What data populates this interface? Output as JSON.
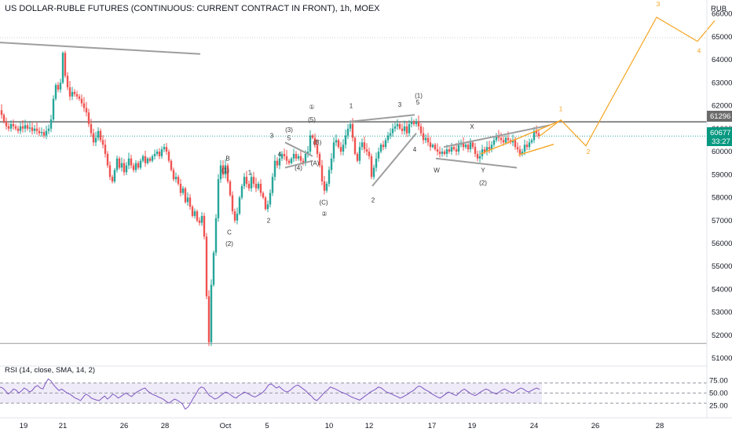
{
  "chart_data": {
    "type": "candlestick",
    "title": "US DOLLAR-RUBLE FUTURES (CONTINUOUS: CURRENT CONTRACT IN FRONT), 1h, MOEX",
    "currency": "RUB",
    "y_ticks": [
      "66000",
      "65000",
      "64000",
      "63000",
      "62000",
      "61000",
      "60000",
      "59000",
      "58000",
      "57000",
      "56000",
      "55000",
      "54000",
      "53000",
      "52000",
      "51000"
    ],
    "ylim": [
      50700,
      66600
    ],
    "x_ticks": [
      "19",
      "21",
      "26",
      "28",
      "Oct",
      "5",
      "10",
      "12",
      "17",
      "19",
      "24",
      "26",
      "28"
    ],
    "price_badges": {
      "level": "61296",
      "last": "60677",
      "countdown": "33:27"
    },
    "horizontal_levels": [
      61296,
      51650
    ],
    "colors": {
      "up": "#26a69a",
      "down": "#ef5350",
      "projection": "#f5a623",
      "lines": "#9e9e9e",
      "rsi": "#7e57c2"
    },
    "price_path": [
      [
        0,
        61800
      ],
      [
        3,
        61600
      ],
      [
        6,
        61300
      ],
      [
        9,
        61100
      ],
      [
        12,
        61000
      ],
      [
        15,
        61200
      ],
      [
        18,
        61100
      ],
      [
        21,
        61000
      ],
      [
        24,
        60900
      ],
      [
        27,
        61100
      ],
      [
        30,
        61000
      ],
      [
        33,
        61150
      ],
      [
        36,
        61000
      ],
      [
        39,
        61050
      ],
      [
        42,
        60900
      ],
      [
        45,
        61000
      ],
      [
        48,
        60900
      ],
      [
        51,
        60800
      ],
      [
        54,
        60850
      ],
      [
        57,
        60700
      ],
      [
        60,
        60900
      ],
      [
        63,
        61000
      ],
      [
        66,
        61400
      ],
      [
        69,
        62300
      ],
      [
        72,
        62900
      ],
      [
        75,
        62700
      ],
      [
        78,
        63000
      ],
      [
        81,
        64300
      ],
      [
        84,
        63300
      ],
      [
        87,
        62800
      ],
      [
        90,
        62400
      ],
      [
        93,
        62600
      ],
      [
        96,
        62500
      ],
      [
        99,
        62400
      ],
      [
        102,
        62300
      ],
      [
        105,
        62100
      ],
      [
        108,
        61900
      ],
      [
        111,
        61700
      ],
      [
        114,
        61200
      ],
      [
        117,
        60800
      ],
      [
        120,
        60400
      ],
      [
        123,
        60600
      ],
      [
        126,
        60900
      ],
      [
        129,
        60500
      ],
      [
        132,
        60300
      ],
      [
        135,
        59900
      ],
      [
        138,
        59400
      ],
      [
        141,
        58900
      ],
      [
        144,
        58700
      ],
      [
        147,
        59200
      ],
      [
        150,
        59700
      ],
      [
        153,
        59300
      ],
      [
        156,
        59500
      ],
      [
        159,
        59100
      ],
      [
        162,
        59400
      ],
      [
        165,
        59700
      ],
      [
        168,
        59400
      ],
      [
        171,
        59200
      ],
      [
        174,
        59500
      ],
      [
        177,
        59300
      ],
      [
        180,
        59600
      ],
      [
        183,
        59800
      ],
      [
        186,
        59500
      ],
      [
        189,
        59700
      ],
      [
        192,
        59600
      ],
      [
        195,
        59800
      ],
      [
        198,
        59900
      ],
      [
        201,
        60000
      ],
      [
        204,
        59800
      ],
      [
        207,
        60100
      ],
      [
        210,
        60200
      ],
      [
        213,
        60000
      ],
      [
        216,
        59600
      ],
      [
        219,
        59200
      ],
      [
        222,
        58800
      ],
      [
        225,
        58900
      ],
      [
        228,
        58600
      ],
      [
        231,
        58200
      ],
      [
        234,
        58400
      ],
      [
        237,
        57800
      ],
      [
        240,
        58000
      ],
      [
        243,
        57600
      ],
      [
        246,
        57200
      ],
      [
        249,
        57400
      ],
      [
        252,
        57000
      ],
      [
        255,
        56900
      ],
      [
        258,
        57200
      ],
      [
        261,
        56300
      ],
      [
        264,
        53700
      ],
      [
        267,
        51700
      ],
      [
        270,
        54200
      ],
      [
        273,
        55600
      ],
      [
        276,
        57100
      ],
      [
        279,
        58800
      ],
      [
        282,
        59400
      ],
      [
        285,
        59000
      ],
      [
        288,
        59400
      ],
      [
        291,
        58700
      ],
      [
        294,
        58100
      ],
      [
        297,
        57400
      ],
      [
        300,
        57000
      ],
      [
        303,
        57300
      ],
      [
        306,
        58000
      ],
      [
        309,
        58500
      ],
      [
        312,
        58900
      ],
      [
        315,
        58600
      ],
      [
        318,
        58400
      ],
      [
        321,
        58900
      ],
      [
        324,
        58600
      ],
      [
        327,
        58400
      ],
      [
        330,
        58600
      ],
      [
        333,
        58200
      ],
      [
        336,
        58000
      ],
      [
        339,
        57500
      ],
      [
        342,
        57700
      ],
      [
        345,
        58200
      ],
      [
        348,
        58900
      ],
      [
        351,
        59600
      ],
      [
        354,
        59400
      ],
      [
        357,
        59700
      ],
      [
        360,
        59900
      ],
      [
        363,
        59800
      ],
      [
        366,
        59600
      ],
      [
        369,
        59500
      ],
      [
        372,
        59700
      ],
      [
        375,
        59900
      ],
      [
        378,
        59700
      ],
      [
        381,
        59800
      ],
      [
        384,
        59600
      ],
      [
        387,
        59500
      ],
      [
        390,
        59900
      ],
      [
        393,
        60000
      ],
      [
        396,
        60700
      ],
      [
        399,
        60600
      ],
      [
        402,
        60300
      ],
      [
        405,
        59900
      ],
      [
        408,
        59400
      ],
      [
        411,
        58700
      ],
      [
        414,
        58300
      ],
      [
        417,
        58600
      ],
      [
        420,
        59200
      ],
      [
        423,
        59700
      ],
      [
        426,
        60400
      ],
      [
        429,
        60500
      ],
      [
        432,
        60200
      ],
      [
        435,
        60000
      ],
      [
        438,
        60300
      ],
      [
        441,
        60700
      ],
      [
        444,
        61000
      ],
      [
        447,
        61200
      ],
      [
        450,
        60600
      ],
      [
        453,
        59900
      ],
      [
        456,
        59600
      ],
      [
        459,
        60200
      ],
      [
        462,
        60400
      ],
      [
        465,
        60100
      ],
      [
        468,
        60000
      ],
      [
        471,
        59800
      ],
      [
        474,
        58900
      ],
      [
        477,
        59300
      ],
      [
        480,
        59700
      ],
      [
        483,
        60000
      ],
      [
        486,
        60300
      ],
      [
        489,
        60200
      ],
      [
        492,
        60500
      ],
      [
        495,
        60700
      ],
      [
        498,
        60800
      ],
      [
        501,
        61000
      ],
      [
        504,
        61100
      ],
      [
        507,
        61200
      ],
      [
        510,
        61000
      ],
      [
        513,
        60900
      ],
      [
        516,
        61100
      ],
      [
        519,
        60800
      ],
      [
        522,
        61200
      ],
      [
        525,
        61300
      ],
      [
        528,
        61200
      ],
      [
        531,
        61300
      ],
      [
        534,
        61100
      ],
      [
        537,
        60800
      ],
      [
        540,
        60500
      ],
      [
        543,
        60600
      ],
      [
        546,
        60400
      ],
      [
        549,
        60200
      ],
      [
        552,
        60300
      ],
      [
        555,
        60100
      ],
      [
        558,
        60000
      ],
      [
        561,
        59900
      ],
      [
        564,
        60000
      ],
      [
        567,
        59900
      ],
      [
        570,
        60100
      ],
      [
        573,
        60000
      ],
      [
        576,
        60200
      ],
      [
        579,
        60100
      ],
      [
        582,
        60000
      ],
      [
        585,
        60300
      ],
      [
        588,
        60400
      ],
      [
        591,
        60200
      ],
      [
        594,
        60300
      ],
      [
        597,
        60100
      ],
      [
        600,
        60400
      ],
      [
        603,
        60200
      ],
      [
        606,
        59900
      ],
      [
        609,
        59700
      ],
      [
        612,
        59800
      ],
      [
        615,
        60100
      ],
      [
        618,
        60000
      ],
      [
        621,
        60200
      ],
      [
        624,
        60100
      ],
      [
        627,
        60300
      ],
      [
        630,
        60500
      ],
      [
        633,
        60700
      ],
      [
        636,
        60600
      ],
      [
        639,
        60500
      ],
      [
        642,
        60400
      ],
      [
        645,
        60600
      ],
      [
        648,
        60500
      ],
      [
        651,
        60400
      ],
      [
        654,
        60500
      ],
      [
        657,
        60200
      ],
      [
        660,
        60100
      ],
      [
        663,
        59900
      ],
      [
        666,
        60000
      ],
      [
        669,
        60300
      ],
      [
        672,
        60200
      ],
      [
        675,
        60400
      ],
      [
        678,
        60500
      ],
      [
        681,
        60900
      ],
      [
        684,
        60800
      ],
      [
        687,
        60677
      ]
    ],
    "projection_path": [
      [
        687,
        60677
      ],
      [
        714,
        61380
      ],
      [
        746,
        60250
      ],
      [
        836,
        65850
      ],
      [
        888,
        64800
      ],
      [
        910,
        65700
      ]
    ],
    "projection_labels": [
      {
        "t": "1",
        "x": 714,
        "y": 61760
      },
      {
        "t": "2",
        "x": 749,
        "y": 59900
      },
      {
        "t": "3",
        "x": 838,
        "y": 66320
      },
      {
        "t": "4",
        "x": 890,
        "y": 64300
      }
    ],
    "trend_lines": [
      {
        "x1": 0,
        "y1": 64750,
        "x2": 255,
        "y2": 64250
      },
      {
        "x1": 363,
        "y1": 60400,
        "x2": 398,
        "y2": 59800
      },
      {
        "x1": 363,
        "y1": 59300,
        "x2": 398,
        "y2": 59600
      },
      {
        "x1": 444,
        "y1": 61300,
        "x2": 528,
        "y2": 61600
      },
      {
        "x1": 474,
        "y1": 58500,
        "x2": 530,
        "y2": 60800
      },
      {
        "x1": 555,
        "y1": 59700,
        "x2": 658,
        "y2": 59300
      },
      {
        "x1": 565,
        "y1": 60200,
        "x2": 700,
        "y2": 61150
      }
    ],
    "orange_channel": [
      {
        "x1": 612,
        "y1": 59900,
        "x2": 714,
        "y2": 61350
      },
      {
        "x1": 660,
        "y1": 59850,
        "x2": 705,
        "y2": 60320
      }
    ],
    "wave_labels": [
      {
        "t": "B",
        "x": 290,
        "y": 59600
      },
      {
        "t": "(1)",
        "x": 287,
        "y": 59100
      },
      {
        "t": "C",
        "x": 292,
        "y": 56400
      },
      {
        "t": "(2)",
        "x": 292,
        "y": 55900
      },
      {
        "t": "1",
        "x": 318,
        "y": 59000
      },
      {
        "t": "2",
        "x": 342,
        "y": 56900
      },
      {
        "t": "3",
        "x": 346,
        "y": 60600
      },
      {
        "t": "4",
        "x": 356,
        "y": 59800
      },
      {
        "t": "(3)",
        "x": 368,
        "y": 60850
      },
      {
        "t": "5",
        "x": 368,
        "y": 60500
      },
      {
        "t": "(4)",
        "x": 380,
        "y": 59200
      },
      {
        "t": "(A)",
        "x": 401,
        "y": 59400
      },
      {
        "t": "(B)",
        "x": 404,
        "y": 60300
      },
      {
        "t": "①",
        "x": 397,
        "y": 61850
      },
      {
        "t": "(5)",
        "x": 397,
        "y": 61300
      },
      {
        "t": "(C)",
        "x": 412,
        "y": 57700
      },
      {
        "t": "②",
        "x": 413,
        "y": 57200
      },
      {
        "t": "1",
        "x": 447,
        "y": 61900
      },
      {
        "t": "2",
        "x": 475,
        "y": 57800
      },
      {
        "t": "3",
        "x": 509,
        "y": 61950
      },
      {
        "t": "(1)",
        "x": 533,
        "y": 62350
      },
      {
        "t": "5",
        "x": 532,
        "y": 62050
      },
      {
        "t": "4",
        "x": 528,
        "y": 60000
      },
      {
        "t": "X",
        "x": 601,
        "y": 61000
      },
      {
        "t": "W",
        "x": 556,
        "y": 59100
      },
      {
        "t": "Y",
        "x": 615,
        "y": 59100
      },
      {
        "t": "(2)",
        "x": 615,
        "y": 58550
      }
    ],
    "rsi": {
      "label": "RSI (14, close, SMA, 14, 2)",
      "ticks": [
        "75.00",
        "50.00",
        "25.00"
      ],
      "upper": 70,
      "middle": 50,
      "lower": 30,
      "values": [
        62,
        60,
        55,
        48,
        52,
        58,
        56,
        50,
        54,
        60,
        57,
        52,
        55,
        62,
        65,
        60,
        58,
        70,
        78,
        74,
        66,
        60,
        55,
        58,
        54,
        50,
        48,
        44,
        40,
        38,
        35,
        42,
        48,
        45,
        40,
        38,
        36,
        35,
        40,
        44,
        38,
        42,
        48,
        45,
        40,
        43,
        47,
        50,
        46,
        43,
        48,
        52,
        55,
        58,
        60,
        54,
        50,
        47,
        45,
        42,
        40,
        37,
        33,
        30,
        34,
        38,
        36,
        32,
        28,
        18,
        22,
        30,
        40,
        48,
        58,
        62,
        60,
        52,
        45,
        42,
        38,
        40,
        44,
        48,
        52,
        50,
        46,
        42,
        40,
        45,
        48,
        52,
        50,
        47,
        44,
        42,
        45,
        48,
        52,
        58,
        66,
        68,
        64,
        60,
        63,
        58,
        54,
        52,
        55,
        60,
        64,
        66,
        62,
        58,
        54,
        48,
        44,
        38,
        35,
        40,
        46,
        52,
        56,
        62,
        60,
        58,
        55,
        52,
        50,
        48,
        45,
        42,
        40,
        38,
        36,
        40,
        44,
        48,
        52,
        55,
        58,
        62,
        60,
        56,
        52,
        50,
        48,
        45,
        43,
        40,
        42,
        45,
        48,
        52,
        55,
        60,
        64,
        62,
        58,
        55,
        52,
        48,
        45,
        42,
        40,
        44,
        48,
        52,
        50,
        47,
        45,
        50,
        55,
        58,
        54,
        50,
        47,
        45,
        48,
        52,
        55,
        58,
        56,
        52,
        50,
        48,
        52,
        56,
        58,
        55,
        52,
        50,
        53,
        57,
        60,
        58,
        54,
        52,
        55,
        58,
        60,
        57
      ]
    }
  }
}
